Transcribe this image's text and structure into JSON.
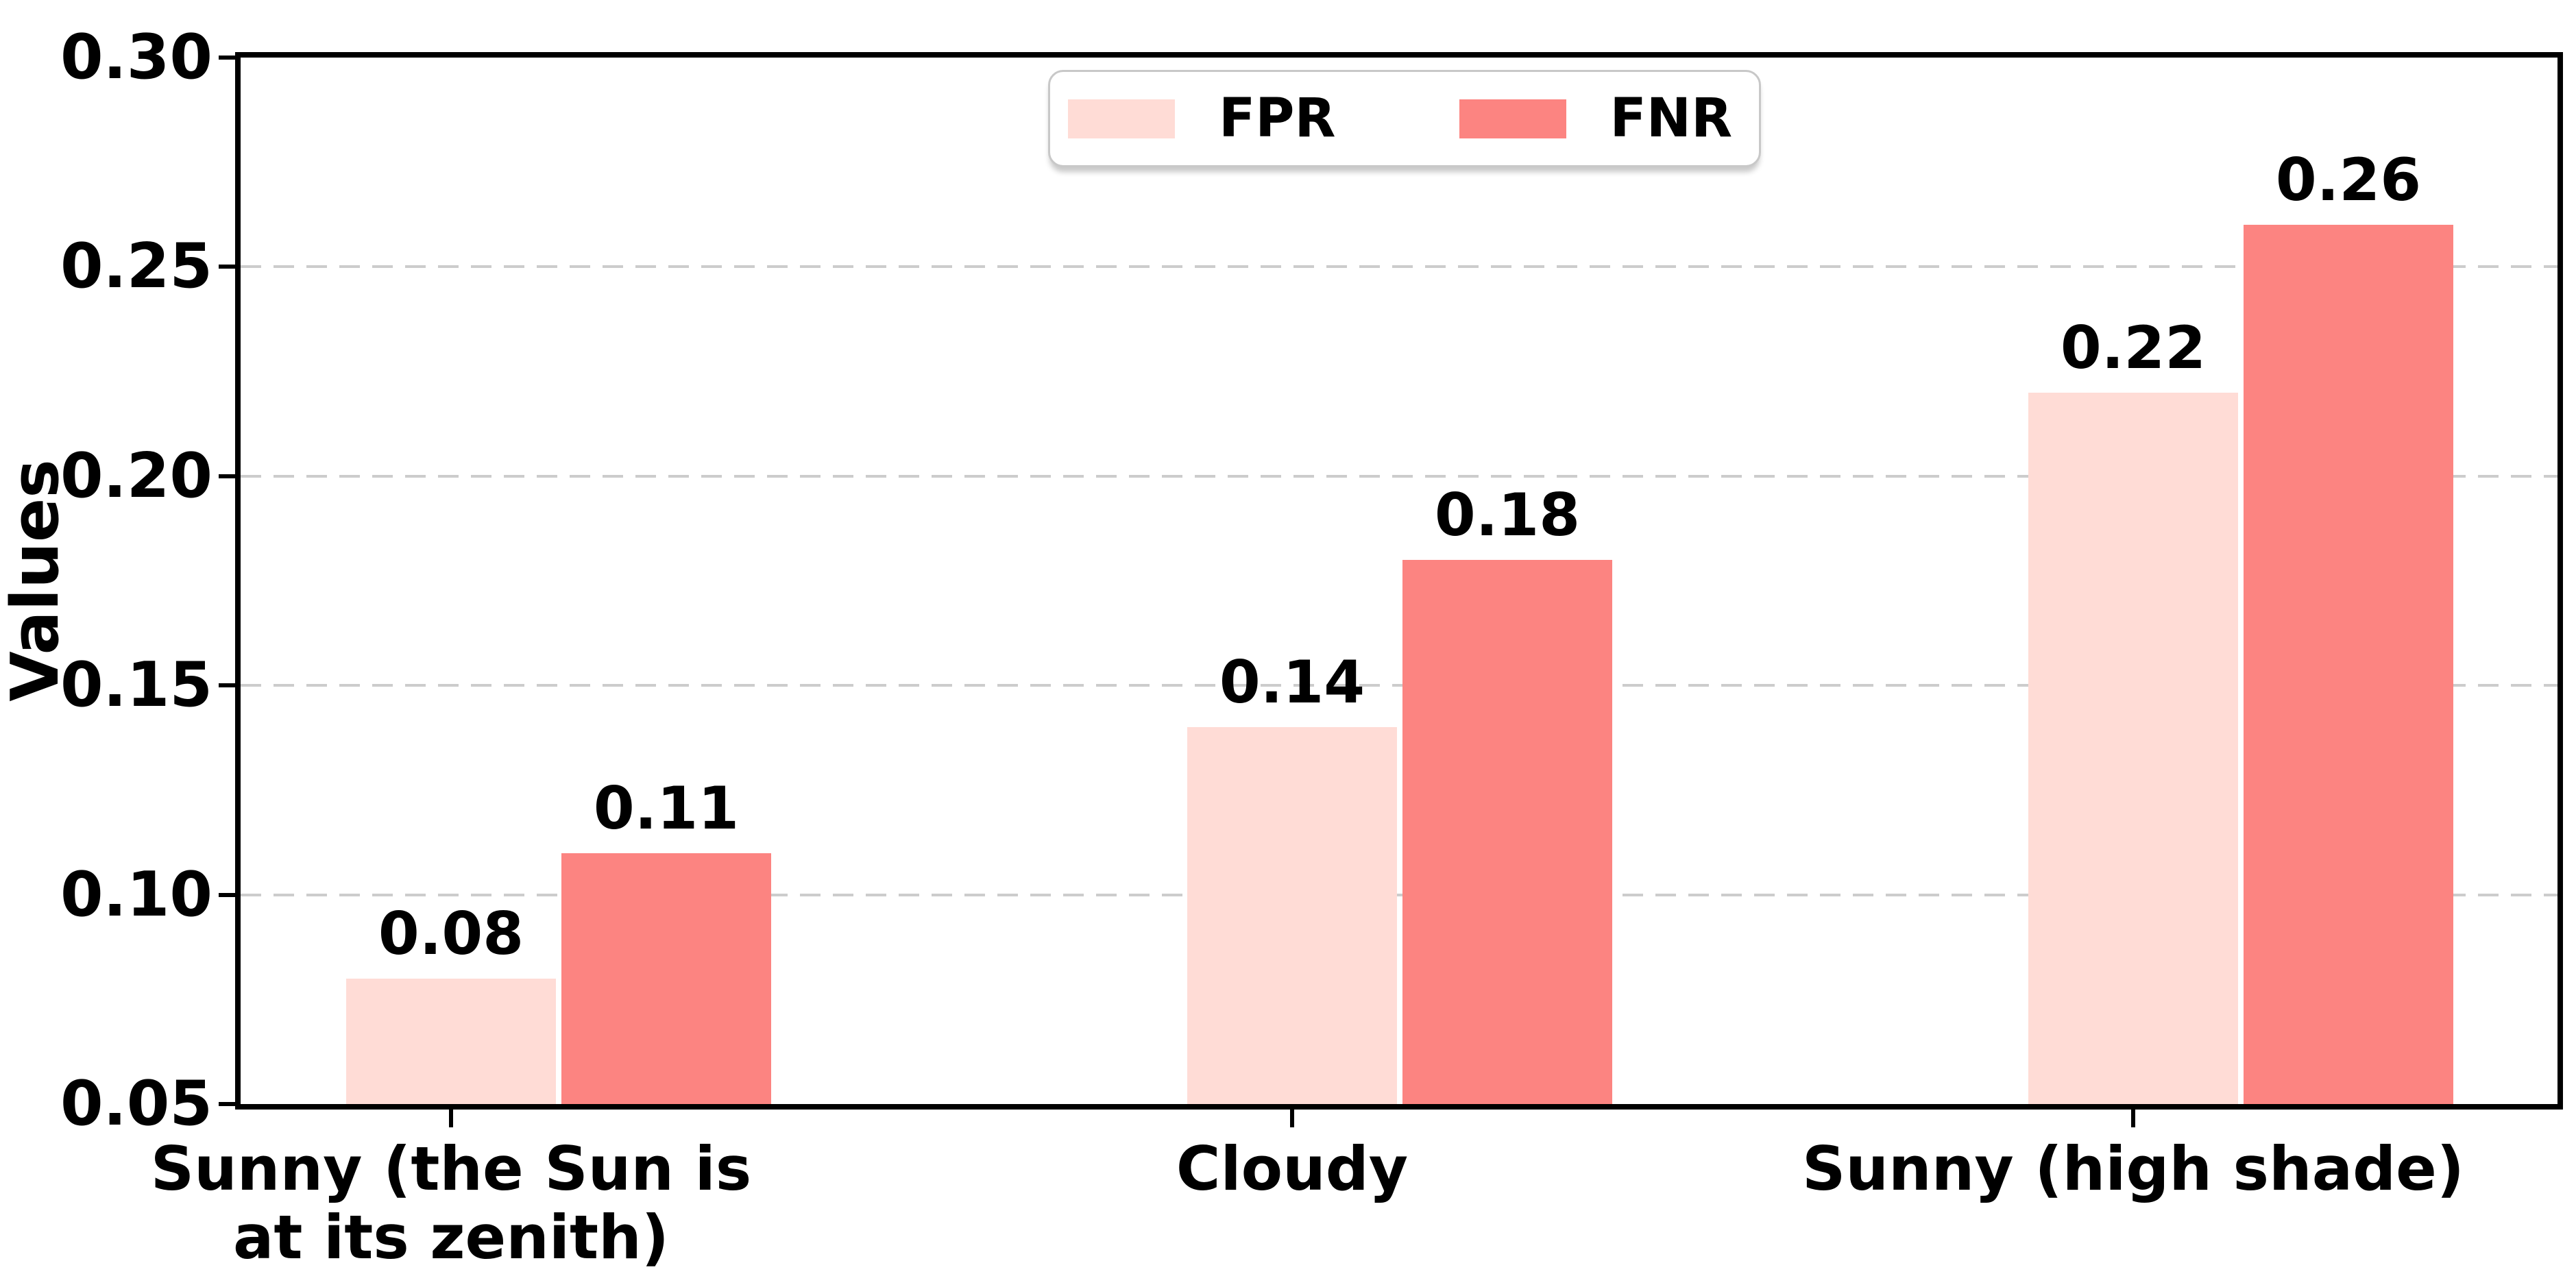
{
  "chart_data": {
    "type": "bar",
    "title": "",
    "ylabel": "Values",
    "xlabel": "",
    "categories": [
      "Sunny (the Sun is\nat its zenith)",
      "Cloudy",
      "Sunny (high shade)"
    ],
    "series": [
      {
        "name": "FPR",
        "color": "#FFDCD6",
        "values": [
          0.08,
          0.14,
          0.22
        ],
        "labels": [
          "0.08",
          "0.14",
          "0.22"
        ]
      },
      {
        "name": "FNR",
        "color": "#FC8481",
        "values": [
          0.11,
          0.18,
          0.26
        ],
        "labels": [
          "0.11",
          "0.18",
          "0.26"
        ]
      }
    ],
    "ylim": [
      0.05,
      0.3
    ],
    "yticks": [
      {
        "value": 0.3,
        "label": "0.30"
      },
      {
        "value": 0.25,
        "label": "0.25"
      },
      {
        "value": 0.2,
        "label": "0.20"
      },
      {
        "value": 0.15,
        "label": "0.15"
      },
      {
        "value": 0.1,
        "label": "0.10"
      },
      {
        "value": 0.05,
        "label": "0.05"
      }
    ],
    "grid": {
      "axis": "y",
      "style": "dashed",
      "color": "#cccccc"
    },
    "legend": {
      "position": "upper center",
      "entries": [
        "FPR",
        "FNR"
      ]
    },
    "axis_color": "#000000",
    "text_color": "#000000",
    "background": "#ffffff"
  }
}
